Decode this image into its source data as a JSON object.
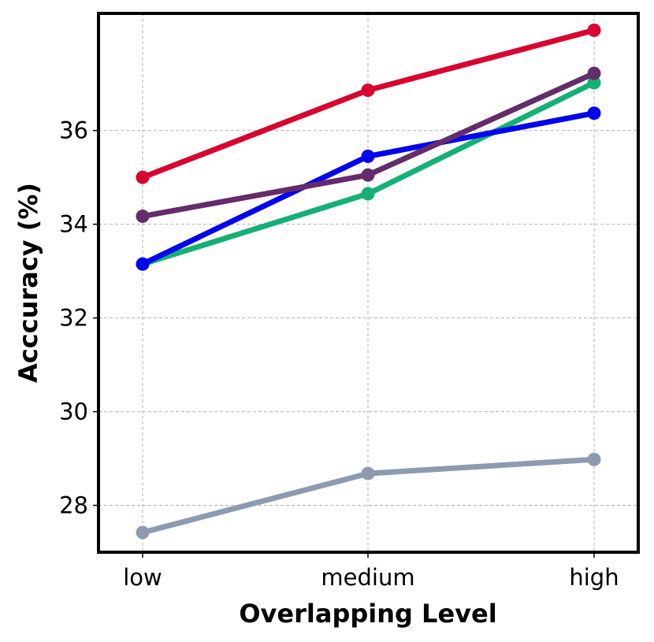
{
  "chart_data": {
    "type": "line",
    "title": "",
    "xlabel": "Overlapping Level",
    "ylabel": "Acccuracy (%)",
    "categories": [
      "low",
      "medium",
      "high"
    ],
    "ylim": [
      27.0,
      38.5
    ],
    "yticks": [
      28,
      30,
      32,
      34,
      36
    ],
    "grid": true,
    "series": [
      {
        "color": "#d7042f",
        "values": [
          35.0,
          36.86,
          38.14
        ]
      },
      {
        "color": "#642c6a",
        "values": [
          34.17,
          35.05,
          37.22
        ]
      },
      {
        "color": "#0303ee",
        "values": [
          33.15,
          35.45,
          36.37
        ]
      },
      {
        "color": "#14b075",
        "values": [
          33.15,
          34.65,
          37.02
        ]
      },
      {
        "color": "#8d9bb0",
        "values": [
          27.42,
          28.68,
          28.98
        ]
      }
    ]
  }
}
